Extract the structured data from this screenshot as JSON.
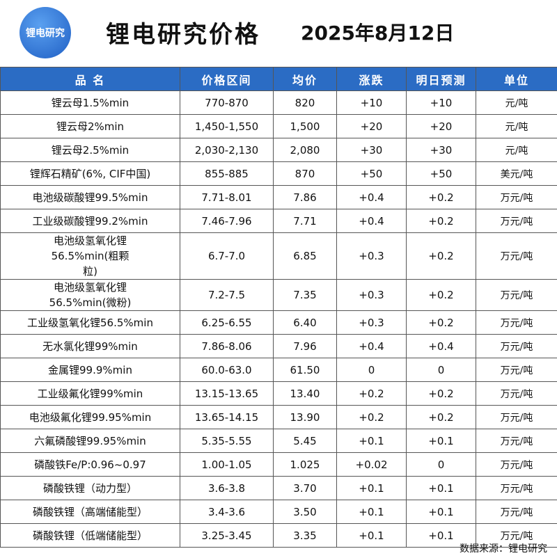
{
  "header": {
    "logo": "锂电研究",
    "title": "锂电研究价格",
    "date": "2025年8月12日"
  },
  "table": {
    "columns": [
      "品  名",
      "价格区间",
      "均价",
      "涨跌",
      "明日预测",
      "单位"
    ],
    "rows": [
      [
        "锂云母1.5%min",
        "770-870",
        "820",
        "+10",
        "+10",
        "元/吨"
      ],
      [
        "锂云母2%min",
        "1,450-1,550",
        "1,500",
        "+20",
        "+20",
        "元/吨"
      ],
      [
        "锂云母2.5%min",
        "2,030-2,130",
        "2,080",
        "+30",
        "+30",
        "元/吨"
      ],
      [
        "锂辉石精矿(6%, CIF中国)",
        "855-885",
        "870",
        "+50",
        "+50",
        "美元/吨"
      ],
      [
        "电池级碳酸锂99.5%min",
        "7.71-8.01",
        "7.86",
        "+0.4",
        "+0.2",
        "万元/吨"
      ],
      [
        "工业级碳酸锂99.2%min",
        "7.46-7.96",
        "7.71",
        "+0.4",
        "+0.2",
        "万元/吨"
      ],
      [
        "电池级氢氧化锂56.5%min(粗颗粒)",
        "6.7-7.0",
        "6.85",
        "+0.3",
        "+0.2",
        "万元/吨"
      ],
      [
        "电池级氢氧化锂56.5%min(微粉)",
        "7.2-7.5",
        "7.35",
        "+0.3",
        "+0.2",
        "万元/吨"
      ],
      [
        "工业级氢氧化锂56.5%min",
        "6.25-6.55",
        "6.40",
        "+0.3",
        "+0.2",
        "万元/吨"
      ],
      [
        "无水氯化锂99%min",
        "7.86-8.06",
        "7.96",
        "+0.4",
        "+0.4",
        "万元/吨"
      ],
      [
        "金属锂99.9%min",
        "60.0-63.0",
        "61.50",
        "0",
        "0",
        "万元/吨"
      ],
      [
        "工业级氟化锂99%min",
        "13.15-13.65",
        "13.40",
        "+0.2",
        "+0.2",
        "万元/吨"
      ],
      [
        "电池级氟化锂99.95%min",
        "13.65-14.15",
        "13.90",
        "+0.2",
        "+0.2",
        "万元/吨"
      ],
      [
        "六氟磷酸锂99.95%min",
        "5.35-5.55",
        "5.45",
        "+0.1",
        "+0.1",
        "万元/吨"
      ],
      [
        "磷酸铁Fe/P:0.96~0.97",
        "1.00-1.05",
        "1.025",
        "+0.02",
        "0",
        "万元/吨"
      ],
      [
        "磷酸铁锂（动力型）",
        "3.6-3.8",
        "3.70",
        "+0.1",
        "+0.1",
        "万元/吨"
      ],
      [
        "磷酸铁锂（高端储能型）",
        "3.4-3.6",
        "3.50",
        "+0.1",
        "+0.1",
        "万元/吨"
      ],
      [
        "磷酸铁锂（低端储能型）",
        "3.25-3.45",
        "3.35",
        "+0.1",
        "+0.1",
        "万元/吨"
      ]
    ]
  },
  "footer": {
    "source": "数据来源：锂电研究"
  }
}
